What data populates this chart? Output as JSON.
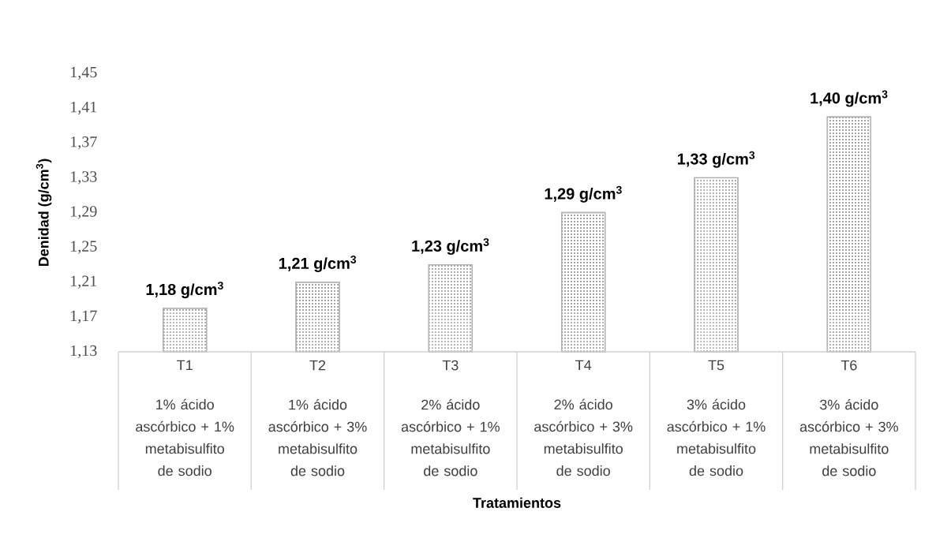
{
  "chart_data": {
    "type": "bar",
    "categories": [
      "T1",
      "T2",
      "T3",
      "T4",
      "T5",
      "T6"
    ],
    "values": [
      1.18,
      1.21,
      1.23,
      1.29,
      1.33,
      1.4
    ],
    "value_labels": [
      "1,18 g/cm$^{3}$",
      "1,21 g/cm$^{3}$",
      "1,23 g/cm$^{3}$",
      "1,29 g/cm$^{3}$",
      "1,33 g/cm$^{3}$",
      "1,40 g/cm$^{3}$"
    ],
    "color": "#b3b3b3",
    "ylim": [
      1.13,
      1.45
    ],
    "yticks": [
      {
        "value": 1.13,
        "label": "1,13"
      },
      {
        "value": 1.17,
        "label": "1,17"
      },
      {
        "value": 1.21,
        "label": "1,21"
      },
      {
        "value": 1.25,
        "label": "1,25"
      },
      {
        "value": 1.29,
        "label": "1,29"
      },
      {
        "value": 1.33,
        "label": "1,33"
      },
      {
        "value": 1.37,
        "label": "1,37"
      },
      {
        "value": 1.41,
        "label": "1,41"
      },
      {
        "value": 1.45,
        "label": "1,45"
      }
    ],
    "ylabel": "**Denidad (g/cm$^{3}$)**",
    "annotations": [
      "1% ácido ascórbico + 1% metabisulfito de sodio",
      "1% ácido ascórbico + 3% metabisulfito de sodio",
      "2% ácido ascórbico + 1% metabisulfito de sodio",
      "2% ácido ascórbico + 3% metabisulfito de sodio",
      "3% ácido ascórbico + 1% metabisulfito de sodio",
      "3% ácido ascórbico + 3% metabisulfito de sodio",
      "**Tratamientos**"
    ]
  }
}
